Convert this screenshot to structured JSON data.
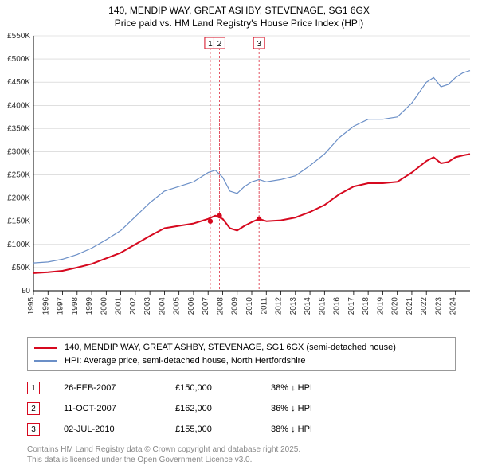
{
  "title_line1": "140, MENDIP WAY, GREAT ASHBY, STEVENAGE, SG1 6GX",
  "title_line2": "Price paid vs. HM Land Registry's House Price Index (HPI)",
  "chart": {
    "type": "line",
    "ylim": [
      0,
      550
    ],
    "ytick_step": 50,
    "y_tick_labels": [
      "£0",
      "£50K",
      "£100K",
      "£150K",
      "£200K",
      "£250K",
      "£300K",
      "£350K",
      "£400K",
      "£450K",
      "£500K",
      "£550K"
    ],
    "xlim": [
      1995,
      2025
    ],
    "x_ticks": [
      1995,
      1996,
      1997,
      1998,
      1999,
      2000,
      2001,
      2002,
      2003,
      2004,
      2005,
      2006,
      2007,
      2008,
      2009,
      2010,
      2011,
      2012,
      2013,
      2014,
      2015,
      2016,
      2017,
      2018,
      2019,
      2020,
      2021,
      2022,
      2023,
      2024
    ],
    "background_color": "#ffffff",
    "grid_color": "#cccccc",
    "axis_color": "#000000",
    "axis_fontsize": 10,
    "series": {
      "hpi": {
        "label": "HPI: Average price, semi-detached house, North Hertfordshire",
        "color": "#6b8fc7",
        "line_width": 1.2,
        "data": [
          [
            1995,
            60
          ],
          [
            1996,
            62
          ],
          [
            1997,
            68
          ],
          [
            1998,
            78
          ],
          [
            1999,
            92
          ],
          [
            2000,
            110
          ],
          [
            2001,
            130
          ],
          [
            2002,
            160
          ],
          [
            2003,
            190
          ],
          [
            2004,
            215
          ],
          [
            2005,
            225
          ],
          [
            2006,
            235
          ],
          [
            2007,
            255
          ],
          [
            2007.5,
            260
          ],
          [
            2008,
            245
          ],
          [
            2008.5,
            215
          ],
          [
            2009,
            210
          ],
          [
            2009.5,
            225
          ],
          [
            2010,
            235
          ],
          [
            2010.5,
            240
          ],
          [
            2011,
            235
          ],
          [
            2012,
            240
          ],
          [
            2013,
            248
          ],
          [
            2014,
            270
          ],
          [
            2015,
            295
          ],
          [
            2016,
            330
          ],
          [
            2017,
            355
          ],
          [
            2018,
            370
          ],
          [
            2019,
            370
          ],
          [
            2020,
            375
          ],
          [
            2021,
            405
          ],
          [
            2022,
            450
          ],
          [
            2022.5,
            460
          ],
          [
            2023,
            440
          ],
          [
            2023.5,
            445
          ],
          [
            2024,
            460
          ],
          [
            2024.5,
            470
          ],
          [
            2025,
            475
          ]
        ]
      },
      "paid": {
        "label": "140, MENDIP WAY, GREAT ASHBY, STEVENAGE, SG1 6GX (semi-detached house)",
        "color": "#d6091f",
        "line_width": 2,
        "data": [
          [
            1995,
            38
          ],
          [
            1996,
            40
          ],
          [
            1997,
            43
          ],
          [
            1998,
            50
          ],
          [
            1999,
            58
          ],
          [
            2000,
            70
          ],
          [
            2001,
            82
          ],
          [
            2002,
            100
          ],
          [
            2003,
            118
          ],
          [
            2004,
            135
          ],
          [
            2005,
            140
          ],
          [
            2006,
            145
          ],
          [
            2007,
            155
          ],
          [
            2007.5,
            162
          ],
          [
            2008,
            155
          ],
          [
            2008.5,
            135
          ],
          [
            2009,
            130
          ],
          [
            2009.5,
            140
          ],
          [
            2010,
            148
          ],
          [
            2010.5,
            155
          ],
          [
            2011,
            150
          ],
          [
            2012,
            152
          ],
          [
            2013,
            158
          ],
          [
            2014,
            170
          ],
          [
            2015,
            185
          ],
          [
            2016,
            208
          ],
          [
            2017,
            225
          ],
          [
            2018,
            232
          ],
          [
            2019,
            232
          ],
          [
            2020,
            235
          ],
          [
            2021,
            255
          ],
          [
            2022,
            280
          ],
          [
            2022.5,
            288
          ],
          [
            2023,
            275
          ],
          [
            2023.5,
            278
          ],
          [
            2024,
            288
          ],
          [
            2024.5,
            292
          ],
          [
            2025,
            295
          ]
        ]
      }
    },
    "markers": [
      {
        "n": "1",
        "year": 2007.15,
        "value": 150
      },
      {
        "n": "2",
        "year": 2007.78,
        "value": 162
      },
      {
        "n": "3",
        "year": 2010.5,
        "value": 155
      }
    ],
    "marker_border_color": "#d6091f",
    "marker_dot_color": "#d6091f"
  },
  "legend": [
    {
      "color": "#d6091f",
      "label": "140, MENDIP WAY, GREAT ASHBY, STEVENAGE, SG1 6GX (semi-detached house)"
    },
    {
      "color": "#6b8fc7",
      "label": "HPI: Average price, semi-detached house, North Hertfordshire"
    }
  ],
  "sales": [
    {
      "n": "1",
      "date": "26-FEB-2007",
      "price": "£150,000",
      "diff": "38% ↓ HPI"
    },
    {
      "n": "2",
      "date": "11-OCT-2007",
      "price": "£162,000",
      "diff": "36% ↓ HPI"
    },
    {
      "n": "3",
      "date": "02-JUL-2010",
      "price": "£155,000",
      "diff": "38% ↓ HPI"
    }
  ],
  "footer_line1": "Contains HM Land Registry data © Crown copyright and database right 2025.",
  "footer_line2": "This data is licensed under the Open Government Licence v3.0."
}
